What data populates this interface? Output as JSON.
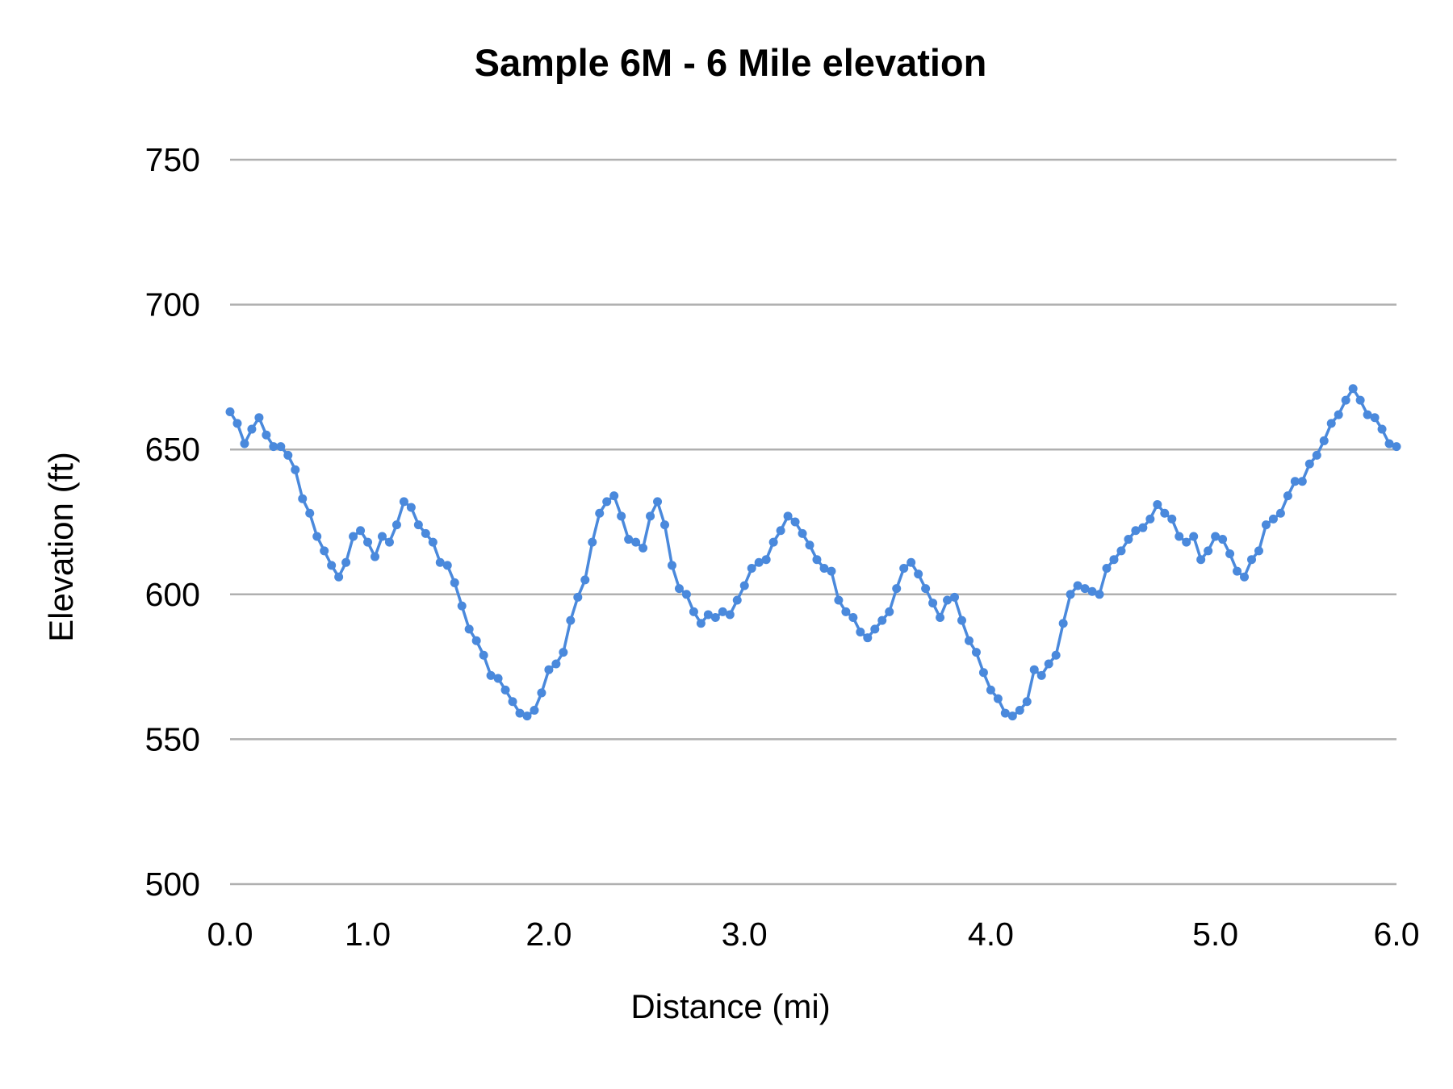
{
  "chart_data": {
    "type": "line",
    "title": "Sample 6M - 6 Mile elevation",
    "xlabel": "Distance (mi)",
    "ylabel": "Elevation (ft)",
    "ylim": [
      500,
      750
    ],
    "y_ticks": [
      "500",
      "550",
      "600",
      "650",
      "700",
      "750"
    ],
    "x_ticks": [
      {
        "label": "0.0",
        "index": 0
      },
      {
        "label": "1.0",
        "index": 19
      },
      {
        "label": "2.0",
        "index": 44
      },
      {
        "label": "3.0",
        "index": 71
      },
      {
        "label": "4.0",
        "index": 105
      },
      {
        "label": "5.0",
        "index": 136
      },
      {
        "label": "6.0",
        "index": 161
      }
    ],
    "grid": "horizontal",
    "markers": true,
    "line_color": "#4a89dc",
    "grid_color": "#b0b0b0",
    "values": [
      663,
      659,
      652,
      657,
      661,
      655,
      651,
      651,
      648,
      643,
      633,
      628,
      620,
      615,
      610,
      606,
      611,
      620,
      622,
      618,
      613,
      620,
      618,
      624,
      632,
      630,
      624,
      621,
      618,
      611,
      610,
      604,
      596,
      588,
      584,
      579,
      572,
      571,
      567,
      563,
      559,
      558,
      560,
      566,
      574,
      576,
      580,
      591,
      599,
      605,
      618,
      628,
      632,
      634,
      627,
      619,
      618,
      616,
      627,
      632,
      624,
      610,
      602,
      600,
      594,
      590,
      593,
      592,
      594,
      593,
      598,
      603,
      609,
      611,
      612,
      618,
      622,
      627,
      625,
      621,
      617,
      612,
      609,
      608,
      598,
      594,
      592,
      587,
      585,
      588,
      591,
      594,
      602,
      609,
      611,
      607,
      602,
      597,
      592,
      598,
      599,
      591,
      584,
      580,
      573,
      567,
      564,
      559,
      558,
      560,
      563,
      574,
      572,
      576,
      579,
      590,
      600,
      603,
      602,
      601,
      600,
      609,
      612,
      615,
      619,
      622,
      623,
      626,
      631,
      628,
      626,
      620,
      618,
      620,
      612,
      615,
      620,
      619,
      614,
      608,
      606,
      612,
      615,
      624,
      626,
      628,
      634,
      639,
      639,
      645,
      648,
      653,
      659,
      662,
      667,
      671,
      667,
      662,
      661,
      657,
      652,
      651
    ]
  }
}
